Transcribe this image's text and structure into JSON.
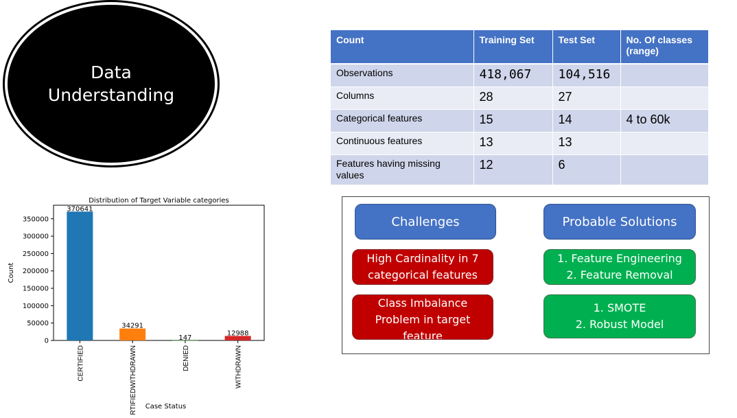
{
  "title": {
    "line1": "Data",
    "line2": "Understanding"
  },
  "table": {
    "headers": [
      "Count",
      "Training Set",
      "Test Set",
      "No. Of classes (range)"
    ],
    "rows": [
      [
        "Observations",
        "418,067",
        "104,516",
        ""
      ],
      [
        "Columns",
        "28",
        "27",
        ""
      ],
      [
        "Categorical features",
        "15",
        "14",
        "4 to 60k"
      ],
      [
        "Continuous features",
        "13",
        "13",
        ""
      ],
      [
        "Features having missing values",
        "12",
        "6",
        ""
      ]
    ]
  },
  "chart_data": {
    "type": "bar",
    "title": "Distribution of Target Variable categories",
    "xlabel": "Case Status",
    "ylabel": "Count",
    "categories": [
      "CERTIFIED",
      "CERTIFIEDWITHDRAWN",
      "DENIED",
      "WITHDRAWN"
    ],
    "values": [
      370641,
      34291,
      147,
      12988
    ],
    "bar_labels": [
      "370641",
      "34291",
      "147",
      "12988"
    ],
    "colors": [
      "#1f77b4",
      "#ff7f0e",
      "#2ca02c",
      "#d62728"
    ],
    "yticks": [
      0,
      50000,
      100000,
      150000,
      200000,
      250000,
      300000,
      350000
    ],
    "ylim": [
      0,
      389000
    ],
    "grid": false,
    "legend": "none"
  },
  "challenges": {
    "header_left": "Challenges",
    "header_right": "Probable Solutions",
    "items": [
      {
        "challenge": [
          "High Cardinality in 7",
          "categorical features"
        ],
        "solution": [
          "1. Feature Engineering",
          "2. Feature Removal"
        ]
      },
      {
        "challenge": [
          "Class Imbalance",
          "Problem in target",
          "feature"
        ],
        "solution": [
          "1. SMOTE",
          "2. Robust Model"
        ]
      }
    ]
  }
}
